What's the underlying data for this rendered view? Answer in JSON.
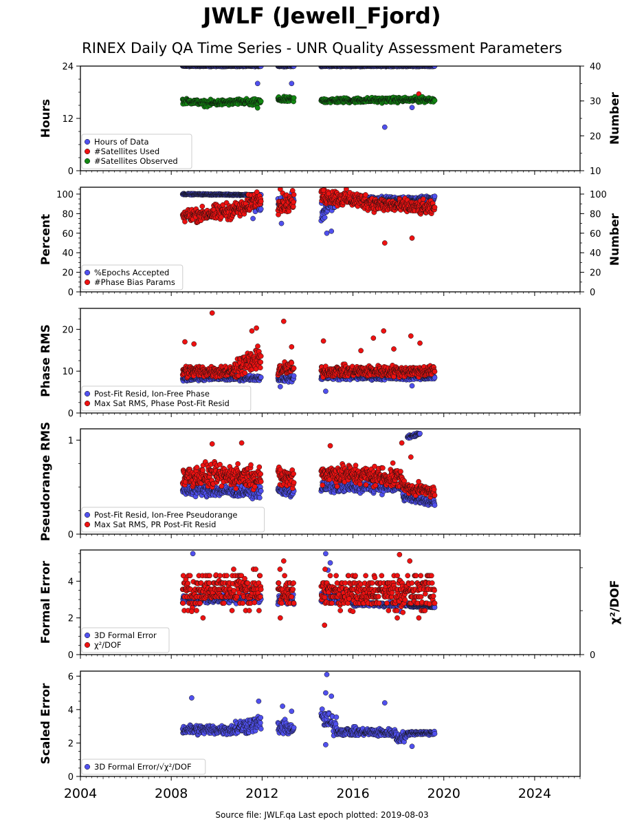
{
  "header": {
    "title": "JWLF (Jewell_Fjord)",
    "subtitle": "RINEX Daily QA Time Series - UNR Quality Assessment Parameters"
  },
  "footer": {
    "text": "Source file: JWLF.qa Last epoch plotted: 2019-08-03"
  },
  "colors": {
    "blue": "#5050ee",
    "red": "#ee1111",
    "green": "#118811",
    "edge": "#111111"
  },
  "chart_data": [
    {
      "type": "scatter",
      "ylabel": "Hours",
      "ylabel_right": "Number",
      "ylim": [
        0,
        24
      ],
      "yticks": [
        0,
        12,
        24
      ],
      "ylim_right": [
        10,
        40
      ],
      "yticks_right": [
        10,
        20,
        30,
        40
      ],
      "legend_position": "lower-left",
      "legend": [
        "Hours of Data",
        "#Satellites Used",
        "#Satellites Observed"
      ],
      "series": [
        {
          "name": "Hours of Data",
          "color": "blue",
          "axis": "left",
          "segments": [
            [
              2008.5,
              2011.95,
              24,
              24,
              0.1
            ],
            [
              2012.7,
              2013.4,
              24,
              24,
              0.1
            ],
            [
              2014.6,
              2019.6,
              24,
              24,
              0.1
            ]
          ],
          "outliers": [
            [
              2011.8,
              20
            ],
            [
              2013.3,
              20
            ],
            [
              2017.4,
              10
            ],
            [
              2018.6,
              14.5
            ]
          ]
        },
        {
          "name": "#Satellites Used",
          "color": "red",
          "axis": "right",
          "segments": [],
          "outliers": [
            [
              2018.9,
              32
            ]
          ]
        },
        {
          "name": "#Satellites Observed",
          "color": "green",
          "axis": "right",
          "segments": [
            [
              2008.5,
              2009.3,
              30,
              29.6,
              0.6
            ],
            [
              2009.3,
              2011.4,
              29.3,
              29.8,
              0.7
            ],
            [
              2011.4,
              2011.95,
              29.3,
              29.8,
              0.8
            ],
            [
              2012.7,
              2013.4,
              30.4,
              30.4,
              0.6
            ],
            [
              2014.6,
              2019.6,
              30.1,
              30.4,
              0.6
            ]
          ],
          "outliers": [
            [
              2011.8,
              28
            ]
          ]
        }
      ]
    },
    {
      "type": "scatter",
      "ylabel": "Percent",
      "ylabel_right": "Number",
      "ylim": [
        0,
        107
      ],
      "yticks": [
        0,
        20,
        40,
        60,
        80,
        100
      ],
      "ylim_right": [
        0,
        107
      ],
      "yticks_right": [
        0,
        20,
        40,
        60,
        80,
        100
      ],
      "legend_position": "lower-left",
      "legend": [
        "%Epochs Accepted",
        "#Phase Bias Params"
      ],
      "series": [
        {
          "name": "%Epochs Accepted",
          "color": "blue",
          "axis": "left",
          "segments": [
            [
              2008.5,
              2011.95,
              100,
              99,
              0.5
            ],
            [
              2011.6,
              2011.95,
              90,
              88,
              6
            ],
            [
              2012.7,
              2013.4,
              90,
              95,
              5
            ],
            [
              2014.6,
              2015.2,
              80,
              90,
              8
            ],
            [
              2015.2,
              2019.6,
              95,
              95,
              2
            ]
          ],
          "outliers": [
            [
              2014.85,
              60
            ],
            [
              2015.05,
              62
            ],
            [
              2012.85,
              70
            ],
            [
              2011.6,
              75
            ]
          ]
        },
        {
          "name": "#Phase Bias Params",
          "color": "red",
          "axis": "right",
          "segments": [
            [
              2008.5,
              2009.8,
              78,
              80,
              6
            ],
            [
              2009.8,
              2011.4,
              80,
              86,
              7
            ],
            [
              2011.4,
              2011.95,
              90,
              98,
              7
            ],
            [
              2012.7,
              2013.4,
              90,
              92,
              8
            ],
            [
              2014.6,
              2016.8,
              98,
              92,
              7
            ],
            [
              2016.8,
              2019.6,
              90,
              85,
              6
            ]
          ],
          "outliers": [
            [
              2017.4,
              50
            ],
            [
              2018.6,
              55
            ],
            [
              2012.8,
              105
            ],
            [
              2014.7,
              104
            ]
          ]
        }
      ]
    },
    {
      "type": "scatter",
      "ylabel": "Phase RMS",
      "ylim": [
        0,
        25
      ],
      "yticks": [
        0,
        10,
        20
      ],
      "legend_position": "lower-left",
      "legend": [
        "Post-Fit Resid, Ion-Free Phase",
        "Max Sat RMS, Phase Post-Fit Resid"
      ],
      "series": [
        {
          "name": "Post-Fit Resid, Ion-Free Phase",
          "color": "blue",
          "segments": [
            [
              2008.5,
              2011.95,
              8.3,
              8.4,
              0.5
            ],
            [
              2012.7,
              2013.4,
              8.2,
              8.2,
              0.6
            ],
            [
              2014.6,
              2019.6,
              8.6,
              8.5,
              0.5
            ]
          ],
          "outliers": [
            [
              2014.8,
              5.2
            ],
            [
              2018.6,
              6.5
            ],
            [
              2012.8,
              6.3
            ]
          ]
        },
        {
          "name": "Max Sat RMS, Phase Post-Fit Resid",
          "color": "red",
          "segments": [
            [
              2008.5,
              2010.8,
              10,
              10,
              1.2
            ],
            [
              2010.8,
              2011.95,
              11,
              13,
              2.2
            ],
            [
              2012.7,
              2013.4,
              10.5,
              10.5,
              1.5
            ],
            [
              2014.6,
              2019.6,
              10,
              10,
              1.1
            ]
          ],
          "outliers": [
            [
              2009.8,
              23.9
            ],
            [
              2012.95,
              21.9
            ],
            [
              2011.75,
              20.3
            ],
            [
              2011.55,
              19.6
            ],
            [
              2017.35,
              19.6
            ],
            [
              2016.9,
              17.9
            ],
            [
              2018.55,
              18.4
            ],
            [
              2014.7,
              17.2
            ],
            [
              2008.6,
              17
            ],
            [
              2009.0,
              16.5
            ],
            [
              2013.3,
              15.8
            ],
            [
              2018.95,
              16.7
            ],
            [
              2017.8,
              15.3
            ],
            [
              2016.35,
              14.9
            ]
          ]
        }
      ]
    },
    {
      "type": "scatter",
      "ylabel": "Pseudorange RMS",
      "ylim": [
        0,
        1.12
      ],
      "yticks": [
        0,
        1
      ],
      "legend_position": "lower-left",
      "legend": [
        "Post-Fit Resid, Ion-Free Pseudorange",
        "Max Sat RMS, PR Post-Fit Resid"
      ],
      "series": [
        {
          "name": "Post-Fit Resid, Ion-Free Pseudorange",
          "color": "blue",
          "segments": [
            [
              2008.5,
              2011.95,
              0.47,
              0.45,
              0.05
            ],
            [
              2012.7,
              2013.4,
              0.47,
              0.45,
              0.05
            ],
            [
              2014.6,
              2018.2,
              0.5,
              0.5,
              0.05
            ],
            [
              2018.2,
              2019.6,
              0.4,
              0.33,
              0.03
            ],
            [
              2018.4,
              2018.95,
              1.03,
              1.07,
              0.015
            ]
          ],
          "outliers": []
        },
        {
          "name": "Max Sat RMS, PR Post-Fit Resid",
          "color": "red",
          "segments": [
            [
              2008.5,
              2011.95,
              0.62,
              0.62,
              0.1
            ],
            [
              2012.7,
              2013.4,
              0.6,
              0.6,
              0.09
            ],
            [
              2014.6,
              2018.2,
              0.65,
              0.6,
              0.09
            ],
            [
              2018.2,
              2019.6,
              0.5,
              0.45,
              0.05
            ]
          ],
          "outliers": [
            [
              2009.8,
              0.96
            ],
            [
              2011.1,
              0.97
            ],
            [
              2015.0,
              0.94
            ],
            [
              2018.15,
              0.97
            ],
            [
              2018.55,
              0.82
            ]
          ]
        }
      ]
    },
    {
      "type": "scatter",
      "ylabel": "Formal Error",
      "ylabel_right": "χ²/DOF",
      "ylim": [
        0,
        5.7
      ],
      "yticks": [
        0,
        2,
        4
      ],
      "yticks_right": [
        0
      ],
      "legend_position": "lower-left",
      "legend": [
        "3D Formal Error",
        "χ²/DOF"
      ],
      "series": [
        {
          "name": "3D Formal Error",
          "color": "blue",
          "segments": [
            [
              2008.5,
              2011.95,
              3.0,
              3.1,
              0.2
            ],
            [
              2012.7,
              2013.4,
              3.0,
              3.0,
              0.2
            ],
            [
              2014.6,
              2016.0,
              3.2,
              3.0,
              0.25
            ],
            [
              2016.0,
              2018.5,
              2.75,
              2.75,
              0.1
            ],
            [
              2018.5,
              2019.6,
              2.65,
              2.6,
              0.05
            ]
          ],
          "outliers": [
            [
              2008.95,
              5.5
            ],
            [
              2014.8,
              5.5
            ],
            [
              2015.0,
              5.0
            ],
            [
              2014.9,
              4.6
            ],
            [
              2018.1,
              2.35
            ]
          ]
        },
        {
          "name": "χ²/DOF",
          "color": "red",
          "levels": [
            2.4,
            2.8,
            3.15,
            3.55,
            3.9,
            4.3,
            4.65
          ],
          "segments": [
            [
              2008.5,
              2011.95,
              3.4,
              3.5,
              0.55
            ],
            [
              2012.7,
              2013.4,
              3.4,
              3.4,
              0.55
            ],
            [
              2014.6,
              2019.6,
              3.5,
              3.4,
              0.55
            ]
          ],
          "outliers": [
            [
              2009.4,
              2.0
            ],
            [
              2012.8,
              2.0
            ],
            [
              2014.75,
              1.6
            ],
            [
              2017.95,
              2.0
            ],
            [
              2018.9,
              2.0
            ],
            [
              2008.9,
              2.35
            ],
            [
              2016.0,
              2.35
            ],
            [
              2018.2,
              2.3
            ],
            [
              2012.95,
              5.1
            ],
            [
              2018.05,
              5.45
            ],
            [
              2018.5,
              5.1
            ]
          ]
        }
      ]
    },
    {
      "type": "scatter",
      "ylabel": "Scaled Error",
      "ylim": [
        0,
        6.3
      ],
      "yticks": [
        0,
        2,
        4,
        6
      ],
      "legend_position": "lower-left",
      "legend": [
        "3D Formal Error/√χ²/DOF"
      ],
      "series": [
        {
          "name": "3D Formal Error/√χ²/DOF",
          "color": "blue",
          "segments": [
            [
              2008.5,
              2010.8,
              2.8,
              2.8,
              0.25
            ],
            [
              2010.8,
              2011.95,
              2.9,
              3.2,
              0.4
            ],
            [
              2012.7,
              2013.4,
              2.9,
              2.9,
              0.35
            ],
            [
              2014.6,
              2015.3,
              3.5,
              3.0,
              0.5
            ],
            [
              2015.3,
              2017.9,
              2.7,
              2.6,
              0.2
            ],
            [
              2017.9,
              2018.4,
              2.3,
              2.4,
              0.25
            ],
            [
              2018.4,
              2019.6,
              2.6,
              2.6,
              0.1
            ]
          ],
          "outliers": [
            [
              2014.85,
              6.1
            ],
            [
              2014.8,
              5.0
            ],
            [
              2015.05,
              4.8
            ],
            [
              2017.4,
              4.4
            ],
            [
              2008.9,
              4.7
            ],
            [
              2011.85,
              4.5
            ],
            [
              2012.9,
              4.2
            ],
            [
              2013.3,
              3.9
            ],
            [
              2014.8,
              1.9
            ],
            [
              2018.6,
              1.8
            ]
          ]
        }
      ]
    }
  ],
  "x_axis": {
    "xlim": [
      2004,
      2026
    ],
    "xticks": [
      "2004",
      "2008",
      "2012",
      "2016",
      "2020",
      "2024"
    ]
  }
}
